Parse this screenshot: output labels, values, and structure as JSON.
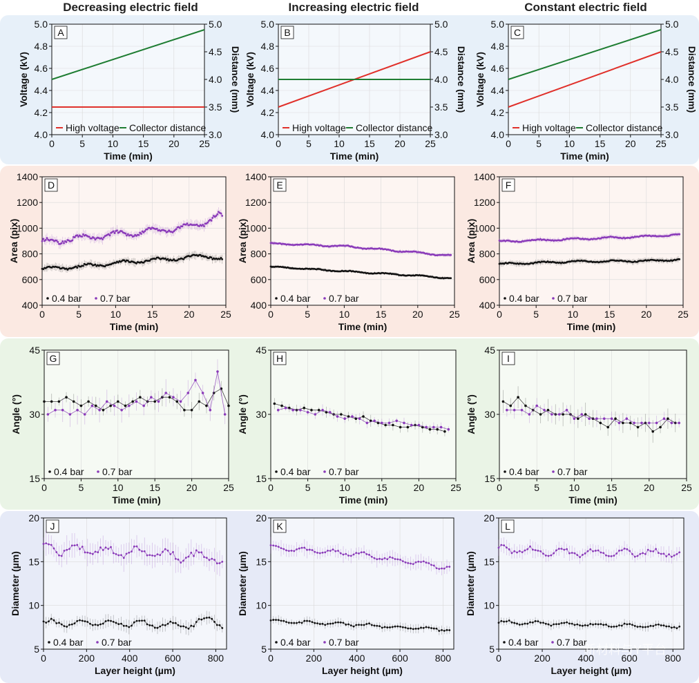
{
  "column_titles": [
    "Decreasing electric field",
    "Increasing electric field",
    "Constant electric field"
  ],
  "watermark": "新材料与Y平台",
  "colors": {
    "row_bg": [
      "#e7f0f9",
      "#fbe9e2",
      "#eaf4e6",
      "#e6eaf7"
    ],
    "high_voltage": "#e0302a",
    "collector_distance": "#1e7d32",
    "bar04": "#111111",
    "bar07": "#8a3ab9"
  },
  "chart_data": [
    {
      "id": "A",
      "type": "line",
      "letter": "A",
      "xlabel": "Time (min)",
      "ylabel": "Voltage (kV)",
      "y2label": "Distance (mm)",
      "xlim": [
        0,
        25
      ],
      "ylim": [
        4.0,
        5.0
      ],
      "y2lim": [
        3.0,
        5.0
      ],
      "xticks": [
        "0",
        "5",
        "10",
        "15",
        "20",
        "25"
      ],
      "yticks": [
        "4.0",
        "4.2",
        "4.4",
        "4.6",
        "4.8",
        "5.0"
      ],
      "y2ticks": [
        "3.0",
        "3.5",
        "4.0",
        "4.5",
        "5.0"
      ],
      "series": [
        {
          "name": "High voltage",
          "axis": "left",
          "x": [
            0,
            25
          ],
          "y": [
            4.25,
            4.25
          ]
        },
        {
          "name": "Collector distance",
          "axis": "right",
          "x": [
            0,
            25
          ],
          "y": [
            4.0,
            4.9
          ]
        }
      ]
    },
    {
      "id": "B",
      "type": "line",
      "letter": "B",
      "xlabel": "Time (min)",
      "ylabel": "Voltage (kV)",
      "y2label": "Distance (mm)",
      "xlim": [
        0,
        25
      ],
      "ylim": [
        4.0,
        5.0
      ],
      "y2lim": [
        3.0,
        5.0
      ],
      "xticks": [
        "0",
        "5",
        "10",
        "15",
        "20",
        "25"
      ],
      "yticks": [
        "4.0",
        "4.2",
        "4.4",
        "4.6",
        "4.8",
        "5.0"
      ],
      "y2ticks": [
        "3.0",
        "3.5",
        "4.0",
        "4.5",
        "5.0"
      ],
      "series": [
        {
          "name": "High voltage",
          "axis": "left",
          "x": [
            0,
            25
          ],
          "y": [
            4.25,
            4.75
          ]
        },
        {
          "name": "Collector distance",
          "axis": "right",
          "x": [
            0,
            25
          ],
          "y": [
            4.0,
            4.0
          ]
        }
      ]
    },
    {
      "id": "C",
      "type": "line",
      "letter": "C",
      "xlabel": "Time (min)",
      "ylabel": "Voltage (kV)",
      "y2label": "Distance (mm)",
      "xlim": [
        0,
        25
      ],
      "ylim": [
        4.0,
        5.0
      ],
      "y2lim": [
        3.0,
        5.0
      ],
      "xticks": [
        "0",
        "5",
        "10",
        "15",
        "20",
        "25"
      ],
      "yticks": [
        "4.0",
        "4.2",
        "4.4",
        "4.6",
        "4.8",
        "5.0"
      ],
      "y2ticks": [
        "3.0",
        "3.5",
        "4.0",
        "4.5",
        "5.0"
      ],
      "series": [
        {
          "name": "High voltage",
          "axis": "left",
          "x": [
            0,
            25
          ],
          "y": [
            4.25,
            4.75
          ]
        },
        {
          "name": "Collector distance",
          "axis": "right",
          "x": [
            0,
            25
          ],
          "y": [
            4.0,
            4.9
          ]
        }
      ]
    },
    {
      "id": "D",
      "type": "scatter",
      "letter": "D",
      "xlabel": "Time (min)",
      "ylabel": "Area (pix)",
      "xlim": [
        0,
        25
      ],
      "ylim": [
        400,
        1400
      ],
      "xticks": [
        "0",
        "5",
        "10",
        "15",
        "20",
        "25"
      ],
      "yticks": [
        "400",
        "600",
        "800",
        "1000",
        "1200",
        "1400"
      ],
      "series": [
        {
          "name": "0.4 bar",
          "trend": [
            [
              0,
              680
            ],
            [
              5,
              700
            ],
            [
              10,
              730
            ],
            [
              15,
              750
            ],
            [
              20,
              770
            ],
            [
              22,
              790
            ],
            [
              24.5,
              760
            ]
          ],
          "wave": 12,
          "err": 25
        },
        {
          "name": "0.7 bar",
          "trend": [
            [
              0,
              890
            ],
            [
              5,
              920
            ],
            [
              10,
              950
            ],
            [
              15,
              980
            ],
            [
              20,
              1010
            ],
            [
              22,
              1040
            ],
            [
              24,
              1110
            ],
            [
              24.5,
              1080
            ]
          ],
          "wave": 20,
          "err": 30
        }
      ]
    },
    {
      "id": "E",
      "type": "scatter",
      "letter": "E",
      "xlabel": "Time (min)",
      "ylabel": "Area (pix)",
      "xlim": [
        0,
        25
      ],
      "ylim": [
        400,
        1400
      ],
      "xticks": [
        "0",
        "5",
        "10",
        "15",
        "20",
        "25"
      ],
      "yticks": [
        "400",
        "600",
        "800",
        "1000",
        "1200",
        "1400"
      ],
      "series": [
        {
          "name": "0.4 bar",
          "trend": [
            [
              0,
              700
            ],
            [
              10,
              665
            ],
            [
              20,
              630
            ],
            [
              24.5,
              610
            ]
          ],
          "wave": 4,
          "err": 10
        },
        {
          "name": "0.7 bar",
          "trend": [
            [
              0,
              880
            ],
            [
              10,
              860
            ],
            [
              20,
              810
            ],
            [
              24.5,
              785
            ]
          ],
          "wave": 5,
          "err": 12
        }
      ]
    },
    {
      "id": "F",
      "type": "scatter",
      "letter": "F",
      "xlabel": "Time (min)",
      "ylabel": "Area (pix)",
      "xlim": [
        0,
        25
      ],
      "ylim": [
        400,
        1400
      ],
      "xticks": [
        "0",
        "5",
        "10",
        "15",
        "20",
        "25"
      ],
      "yticks": [
        "400",
        "600",
        "800",
        "1000",
        "1200",
        "1400"
      ],
      "series": [
        {
          "name": "0.4 bar",
          "trend": [
            [
              0,
              720
            ],
            [
              10,
              740
            ],
            [
              20,
              745
            ],
            [
              24.5,
              755
            ]
          ],
          "wave": 6,
          "err": 18
        },
        {
          "name": "0.7 bar",
          "trend": [
            [
              0,
              895
            ],
            [
              10,
              915
            ],
            [
              20,
              935
            ],
            [
              24.5,
              950
            ]
          ],
          "wave": 6,
          "err": 15
        }
      ]
    },
    {
      "id": "G",
      "type": "scatter",
      "letter": "G",
      "xlabel": "Time (min)",
      "ylabel": "Angle (°)",
      "xlim": [
        0,
        25
      ],
      "ylim": [
        15,
        45
      ],
      "xticks": [
        "0",
        "5",
        "10",
        "15",
        "20",
        "25"
      ],
      "yticks": [
        "15",
        "30",
        "45"
      ],
      "series": [
        {
          "name": "0.4 bar",
          "x": [
            0,
            1,
            2,
            3,
            4,
            5,
            6,
            7,
            8,
            9,
            10,
            11,
            12,
            13,
            14,
            15,
            16,
            17,
            18,
            19,
            20,
            21,
            22,
            23,
            24,
            25
          ],
          "y": [
            33,
            33,
            33,
            34,
            33,
            32,
            33,
            32,
            31,
            32,
            33,
            32,
            33,
            34,
            33,
            33,
            34,
            34,
            33,
            31,
            31,
            33,
            32,
            35,
            36,
            32
          ],
          "err": 1.5
        },
        {
          "name": "0.7 bar",
          "x": [
            0.5,
            1.5,
            2.5,
            3.5,
            4.5,
            5.5,
            6.5,
            7.5,
            8.5,
            9.5,
            10.5,
            11.5,
            12.5,
            13.5,
            14.5,
            15.5,
            16.5,
            17.5,
            18.5,
            19.5,
            20.5,
            21.5,
            22.5,
            23.5,
            24.5
          ],
          "y": [
            30,
            31,
            31,
            30,
            31,
            30,
            32,
            31,
            33,
            32,
            31,
            32,
            33,
            32,
            34,
            33,
            35,
            34,
            33,
            35,
            38,
            35,
            31,
            40,
            30
          ],
          "err": 2.5
        }
      ]
    },
    {
      "id": "H",
      "type": "scatter",
      "letter": "H",
      "xlabel": "Time (min)",
      "ylabel": "Angle (°)",
      "xlim": [
        0,
        25
      ],
      "ylim": [
        15,
        45
      ],
      "xticks": [
        "0",
        "5",
        "10",
        "15",
        "20",
        "25"
      ],
      "yticks": [
        "15",
        "30",
        "45"
      ],
      "series": [
        {
          "name": "0.4 bar",
          "x": [
            0.5,
            1.5,
            2.5,
            3.5,
            4.5,
            5.5,
            6.5,
            7.5,
            8.5,
            9.5,
            10.5,
            11.5,
            12.5,
            13.5,
            14.5,
            15.5,
            16.5,
            17.5,
            18.5,
            19.5,
            20.5,
            21.5,
            22.5,
            23.5
          ],
          "y": [
            32.5,
            32,
            31.5,
            31,
            31.5,
            31,
            31,
            30.5,
            30,
            30,
            29.5,
            29,
            29.5,
            28.5,
            28,
            27.5,
            27.5,
            27,
            27,
            27.5,
            27,
            26.5,
            26.5,
            26
          ],
          "err": 1
        },
        {
          "name": "0.7 bar",
          "x": [
            1,
            2,
            3,
            4,
            5,
            6,
            7,
            8,
            9,
            10,
            11,
            12,
            13,
            14,
            15,
            16,
            17,
            18,
            19,
            20,
            21,
            22,
            23,
            24
          ],
          "y": [
            31,
            31.5,
            31,
            31,
            30.5,
            30,
            31,
            30.5,
            29.5,
            29,
            29.5,
            29,
            28,
            28.5,
            28,
            28,
            28.5,
            28,
            27.5,
            27.5,
            27,
            27,
            27,
            26.5
          ],
          "err": 1
        }
      ]
    },
    {
      "id": "I",
      "type": "scatter",
      "letter": "I",
      "xlabel": "Time (min)",
      "ylabel": "Angle (°)",
      "xlim": [
        0,
        25
      ],
      "ylim": [
        15,
        45
      ],
      "xticks": [
        "0",
        "5",
        "10",
        "15",
        "20",
        "25"
      ],
      "yticks": [
        "15",
        "30",
        "45"
      ],
      "series": [
        {
          "name": "0.4 bar",
          "x": [
            0.5,
            1.5,
            2.5,
            3.5,
            4.5,
            5.5,
            6.5,
            7.5,
            8.5,
            9.5,
            10.5,
            11.5,
            12.5,
            13.5,
            14.5,
            15.5,
            16.5,
            17.5,
            18.5,
            19.5,
            20.5,
            21.5,
            22.5,
            23.5
          ],
          "y": [
            33,
            32,
            34,
            32,
            31,
            30,
            31,
            30,
            30,
            30,
            29,
            30,
            29,
            28,
            27,
            29,
            28,
            28,
            27,
            28,
            26,
            27,
            29,
            28
          ],
          "err": 2
        },
        {
          "name": "0.7 bar",
          "x": [
            1,
            2,
            3,
            4,
            5,
            6,
            7,
            8,
            9,
            10,
            11,
            12,
            13,
            14,
            15,
            16,
            17,
            18,
            19,
            20,
            21,
            22,
            23,
            24
          ],
          "y": [
            31,
            31,
            31,
            30,
            32,
            31,
            30,
            30,
            31,
            29,
            30,
            29,
            29,
            29,
            29,
            28,
            29,
            28,
            28,
            28,
            28,
            29,
            28,
            28
          ],
          "err": 1.5
        }
      ]
    },
    {
      "id": "J",
      "type": "scatter",
      "letter": "J",
      "xlabel": "Layer height (µm)",
      "ylabel": "Diameter (µm)",
      "xlim": [
        0,
        850
      ],
      "ylim": [
        5,
        20
      ],
      "xticks": [
        "0",
        "200",
        "400",
        "600",
        "800"
      ],
      "yticks": [
        "5",
        "10",
        "15",
        "20"
      ],
      "series": [
        {
          "name": "0.4 bar",
          "trend": [
            [
              0,
              8
            ],
            [
              400,
              7.9
            ],
            [
              700,
              7.7
            ],
            [
              780,
              8.8
            ],
            [
              830,
              7.5
            ]
          ],
          "wave": 0.3,
          "err": 0.6
        },
        {
          "name": "0.7 bar",
          "trend": [
            [
              0,
              16.5
            ],
            [
              300,
              16.2
            ],
            [
              550,
              15.9
            ],
            [
              700,
              15.5
            ],
            [
              780,
              16
            ],
            [
              830,
              14.5
            ]
          ],
          "wave": 0.5,
          "err": 1.2
        }
      ]
    },
    {
      "id": "K",
      "type": "scatter",
      "letter": "K",
      "xlabel": "Layer height (µm)",
      "ylabel": "Diameter (µm)",
      "xlim": [
        0,
        850
      ],
      "ylim": [
        5,
        20
      ],
      "xticks": [
        "0",
        "200",
        "400",
        "600",
        "800"
      ],
      "yticks": [
        "5",
        "10",
        "15",
        "20"
      ],
      "series": [
        {
          "name": "0.4 bar",
          "trend": [
            [
              0,
              8.2
            ],
            [
              400,
              7.8
            ],
            [
              830,
              7.2
            ]
          ],
          "wave": 0.15,
          "err": 0.4
        },
        {
          "name": "0.7 bar",
          "trend": [
            [
              0,
              16.6
            ],
            [
              400,
              15.9
            ],
            [
              600,
              15.1
            ],
            [
              830,
              14.3
            ]
          ],
          "wave": 0.2,
          "err": 0.7
        }
      ]
    },
    {
      "id": "L",
      "type": "scatter",
      "letter": "L",
      "xlabel": "Layer height (µm)",
      "ylabel": "Diameter (µm)",
      "xlim": [
        0,
        850
      ],
      "ylim": [
        5,
        20
      ],
      "xticks": [
        "0",
        "200",
        "400",
        "600",
        "800"
      ],
      "yticks": [
        "5",
        "10",
        "15",
        "20"
      ],
      "series": [
        {
          "name": "0.4 bar",
          "trend": [
            [
              0,
              8.1
            ],
            [
              400,
              7.8
            ],
            [
              830,
              7.6
            ]
          ],
          "wave": 0.15,
          "err": 0.4
        },
        {
          "name": "0.7 bar",
          "trend": [
            [
              0,
              16.4
            ],
            [
              400,
              16
            ],
            [
              830,
              16
            ]
          ],
          "wave": 0.35,
          "err": 0.7
        }
      ]
    }
  ]
}
